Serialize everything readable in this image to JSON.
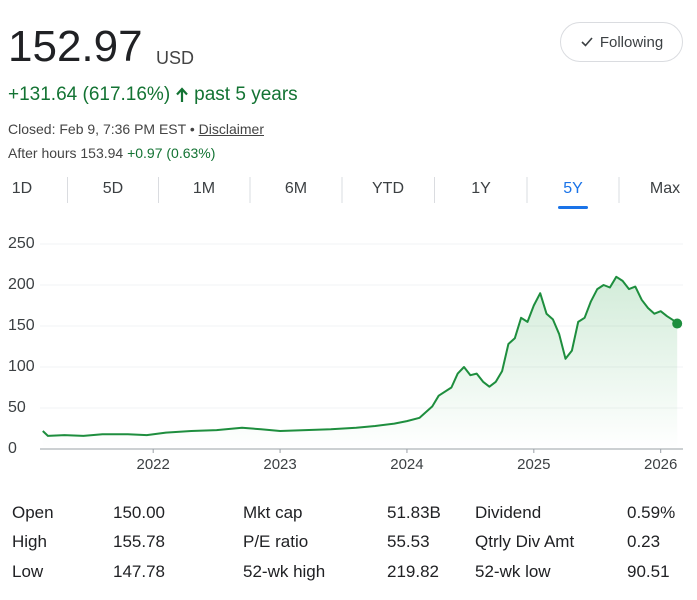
{
  "header": {
    "price": "152.97",
    "currency": "USD",
    "change": "+131.64 (617.16%)",
    "period": "past 5 years",
    "closed": "Closed: Feb 9, 7:36 PM EST",
    "disclaimer": "Disclaimer",
    "after_hours_label": "After hours 153.94",
    "after_hours_change": "+0.97 (0.63%)",
    "follow": "Following"
  },
  "tabs": [
    "1D",
    "5D",
    "1M",
    "6M",
    "YTD",
    "1Y",
    "5Y",
    "Max"
  ],
  "active_tab": 6,
  "chart_data": {
    "type": "line",
    "x": [
      2021.13,
      2021.17,
      2021.3,
      2021.45,
      2021.6,
      2021.8,
      2021.95,
      2022.1,
      2022.3,
      2022.5,
      2022.7,
      2022.85,
      2023.0,
      2023.2,
      2023.4,
      2023.6,
      2023.75,
      2023.9,
      2024.0,
      2024.1,
      2024.2,
      2024.25,
      2024.35,
      2024.4,
      2024.45,
      2024.5,
      2024.55,
      2024.6,
      2024.65,
      2024.7,
      2024.75,
      2024.8,
      2024.85,
      2024.9,
      2024.95,
      2025.0,
      2025.05,
      2025.1,
      2025.15,
      2025.2,
      2025.25,
      2025.3,
      2025.35,
      2025.4,
      2025.45,
      2025.5,
      2025.55,
      2025.6,
      2025.65,
      2025.7,
      2025.75,
      2025.8,
      2025.85,
      2025.9,
      2025.95,
      2026.0,
      2026.05,
      2026.1,
      2026.13
    ],
    "series": [
      {
        "color": "#1e8e3e",
        "values": [
          22,
          16,
          17,
          16,
          18,
          18,
          17,
          20,
          22,
          23,
          26,
          24,
          22,
          23,
          24,
          26,
          28,
          31,
          34,
          38,
          52,
          65,
          75,
          92,
          100,
          90,
          92,
          82,
          76,
          82,
          95,
          128,
          135,
          160,
          155,
          175,
          190,
          165,
          158,
          140,
          110,
          120,
          155,
          160,
          180,
          195,
          200,
          197,
          210,
          205,
          195,
          198,
          182,
          172,
          165,
          168,
          162,
          157,
          153
        ]
      }
    ],
    "xlim": [
      2021.1,
      2026.16
    ],
    "ylim": [
      0,
      250
    ],
    "xticks": [
      2022,
      2023,
      2024,
      2025,
      2026
    ],
    "yticks": [
      0,
      50,
      100,
      150,
      200,
      250
    ],
    "grid": true
  },
  "stats": [
    [
      [
        "Open",
        "150.00"
      ],
      [
        "High",
        "155.78"
      ],
      [
        "Low",
        "147.78"
      ]
    ],
    [
      [
        "Mkt cap",
        "51.83B"
      ],
      [
        "P/E ratio",
        "55.53"
      ],
      [
        "52-wk high",
        "219.82"
      ]
    ],
    [
      [
        "Dividend",
        "0.59%"
      ],
      [
        "Qtrly Div Amt",
        "0.23"
      ],
      [
        "52-wk low",
        "90.51"
      ]
    ]
  ]
}
